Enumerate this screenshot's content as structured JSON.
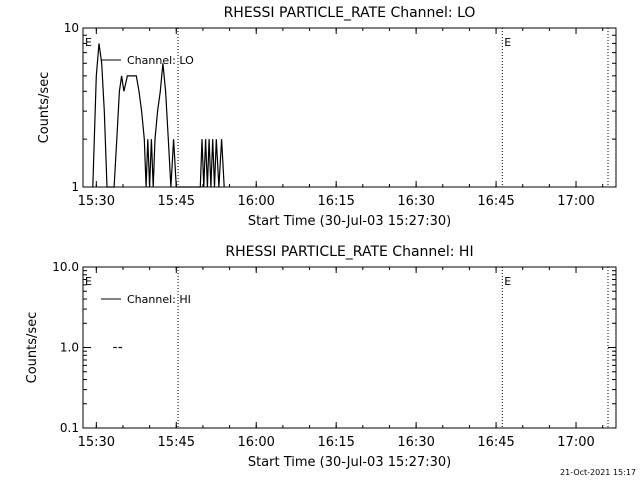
{
  "footer_timestamp": "21-Oct-2021 15:17",
  "chart_data": [
    {
      "type": "line",
      "title": "RHESSI PARTICLE_RATE Channel: LO",
      "xlabel": "Start Time (30-Jul-03 15:27:30)",
      "ylabel": "Counts/sec",
      "y_scale": "log",
      "ylim": [
        1,
        10
      ],
      "y_ticks": [
        {
          "value": 1,
          "label": "1"
        },
        {
          "value": 10,
          "label": "10"
        }
      ],
      "xlim": [
        "15:27:30",
        "17:07:30"
      ],
      "x_ticks": [
        "15:30",
        "15:45",
        "16:00",
        "16:15",
        "16:30",
        "16:45",
        "17:00"
      ],
      "legend": {
        "placement": "top-left",
        "entries": [
          "Channel: LO"
        ]
      },
      "markers": [
        {
          "label": "E",
          "time": "15:27:30"
        },
        {
          "label": "E",
          "time": "16:46:10"
        }
      ],
      "vlines": [
        "15:45:20",
        "16:46:10",
        "17:06:00"
      ],
      "series": [
        {
          "name": "Channel: LO",
          "points": [
            [
              "15:29:20",
              1
            ],
            [
              "15:30:00",
              5
            ],
            [
              "15:30:30",
              8
            ],
            [
              "15:31:00",
              6
            ],
            [
              "15:31:30",
              3
            ],
            [
              "15:32:00",
              1
            ],
            [
              "15:33:20",
              1
            ],
            [
              "15:33:50",
              2
            ],
            [
              "15:34:20",
              4
            ],
            [
              "15:34:45",
              5
            ],
            [
              "15:35:10",
              4
            ],
            [
              "15:35:50",
              5
            ],
            [
              "15:37:30",
              5
            ],
            [
              "15:38:00",
              4
            ],
            [
              "15:38:30",
              3
            ],
            [
              "15:39:00",
              2
            ],
            [
              "15:39:20",
              1
            ],
            [
              "15:39:40",
              2
            ],
            [
              "15:40:00",
              1
            ],
            [
              "15:40:20",
              2
            ],
            [
              "15:40:40",
              1
            ],
            [
              "15:41:00",
              2
            ],
            [
              "15:41:30",
              3
            ],
            [
              "15:42:00",
              4
            ],
            [
              "15:42:30",
              6
            ],
            [
              "15:43:00",
              4
            ],
            [
              "15:43:30",
              2
            ],
            [
              "15:44:00",
              1
            ],
            [
              "15:44:30",
              2
            ],
            [
              "15:45:00",
              1
            ],
            [
              "15:49:30",
              1
            ],
            [
              "15:49:50",
              2
            ],
            [
              "15:50:10",
              1
            ],
            [
              "15:50:30",
              2
            ],
            [
              "15:50:50",
              1
            ],
            [
              "15:51:10",
              2
            ],
            [
              "15:51:30",
              1
            ],
            [
              "15:51:50",
              2
            ],
            [
              "15:52:10",
              1
            ],
            [
              "15:52:30",
              2
            ],
            [
              "15:53:00",
              1
            ],
            [
              "15:53:30",
              2
            ],
            [
              "15:54:00",
              1
            ]
          ]
        }
      ]
    },
    {
      "type": "line",
      "title": "RHESSI PARTICLE_RATE Channel: HI",
      "xlabel": "Start Time (30-Jul-03 15:27:30)",
      "ylabel": "Counts/sec",
      "y_scale": "log",
      "ylim": [
        0.1,
        10
      ],
      "y_ticks": [
        {
          "value": 0.1,
          "label": "0.1"
        },
        {
          "value": 1,
          "label": "1.0"
        },
        {
          "value": 10,
          "label": "10.0"
        }
      ],
      "xlim": [
        "15:27:30",
        "17:07:30"
      ],
      "x_ticks": [
        "15:30",
        "15:45",
        "16:00",
        "16:15",
        "16:30",
        "16:45",
        "17:00"
      ],
      "legend": {
        "placement": "top-left",
        "entries": [
          "Channel: HI"
        ]
      },
      "markers": [
        {
          "label": "E",
          "time": "15:27:30"
        },
        {
          "label": "E",
          "time": "16:46:10"
        }
      ],
      "vlines": [
        "15:45:20",
        "16:46:10",
        "17:06:00"
      ],
      "series": [
        {
          "name": "Channel: HI",
          "segments": [
            [
              [
                "15:33:10",
                1
              ],
              [
                "15:33:50",
                1
              ]
            ],
            [
              [
                "15:34:10",
                1
              ],
              [
                "15:34:50",
                1
              ]
            ]
          ]
        }
      ]
    }
  ]
}
